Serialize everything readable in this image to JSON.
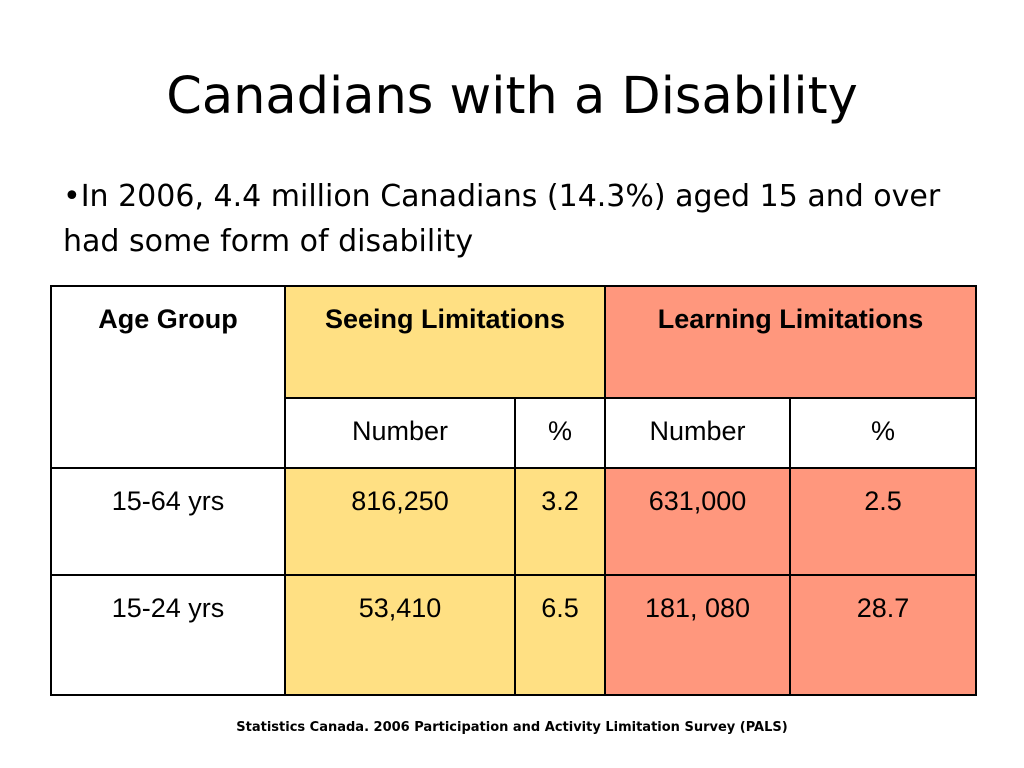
{
  "slide": {
    "title": "Canadians with a Disability",
    "bullet": "•In 2006, 4.4 million Canadians (14.3%) aged 15 and over had some form of disability",
    "source": "Statistics Canada. 2006 Participation and Activity Limitation Survey (PALS)"
  },
  "colors": {
    "seeing_fill": "#ffe083",
    "learning_fill": "#ff977d",
    "border": "#000000"
  },
  "table": {
    "col_age": "Age Group",
    "group_seeing": "Seeing Limitations",
    "group_learning": "Learning Limitations",
    "sub_number_1": "Number",
    "sub_pct_1": "%",
    "sub_number_2": "Number",
    "sub_pct_2": "%",
    "rows": [
      {
        "age": "15-64 yrs",
        "seeing_number": "816,250",
        "seeing_pct": "3.2",
        "learning_number": "631,000",
        "learning_pct": "2.5"
      },
      {
        "age": "15-24 yrs",
        "seeing_number": "53,410",
        "seeing_pct": "6.5",
        "learning_number": "181, 080",
        "learning_pct": "28.7"
      }
    ]
  }
}
